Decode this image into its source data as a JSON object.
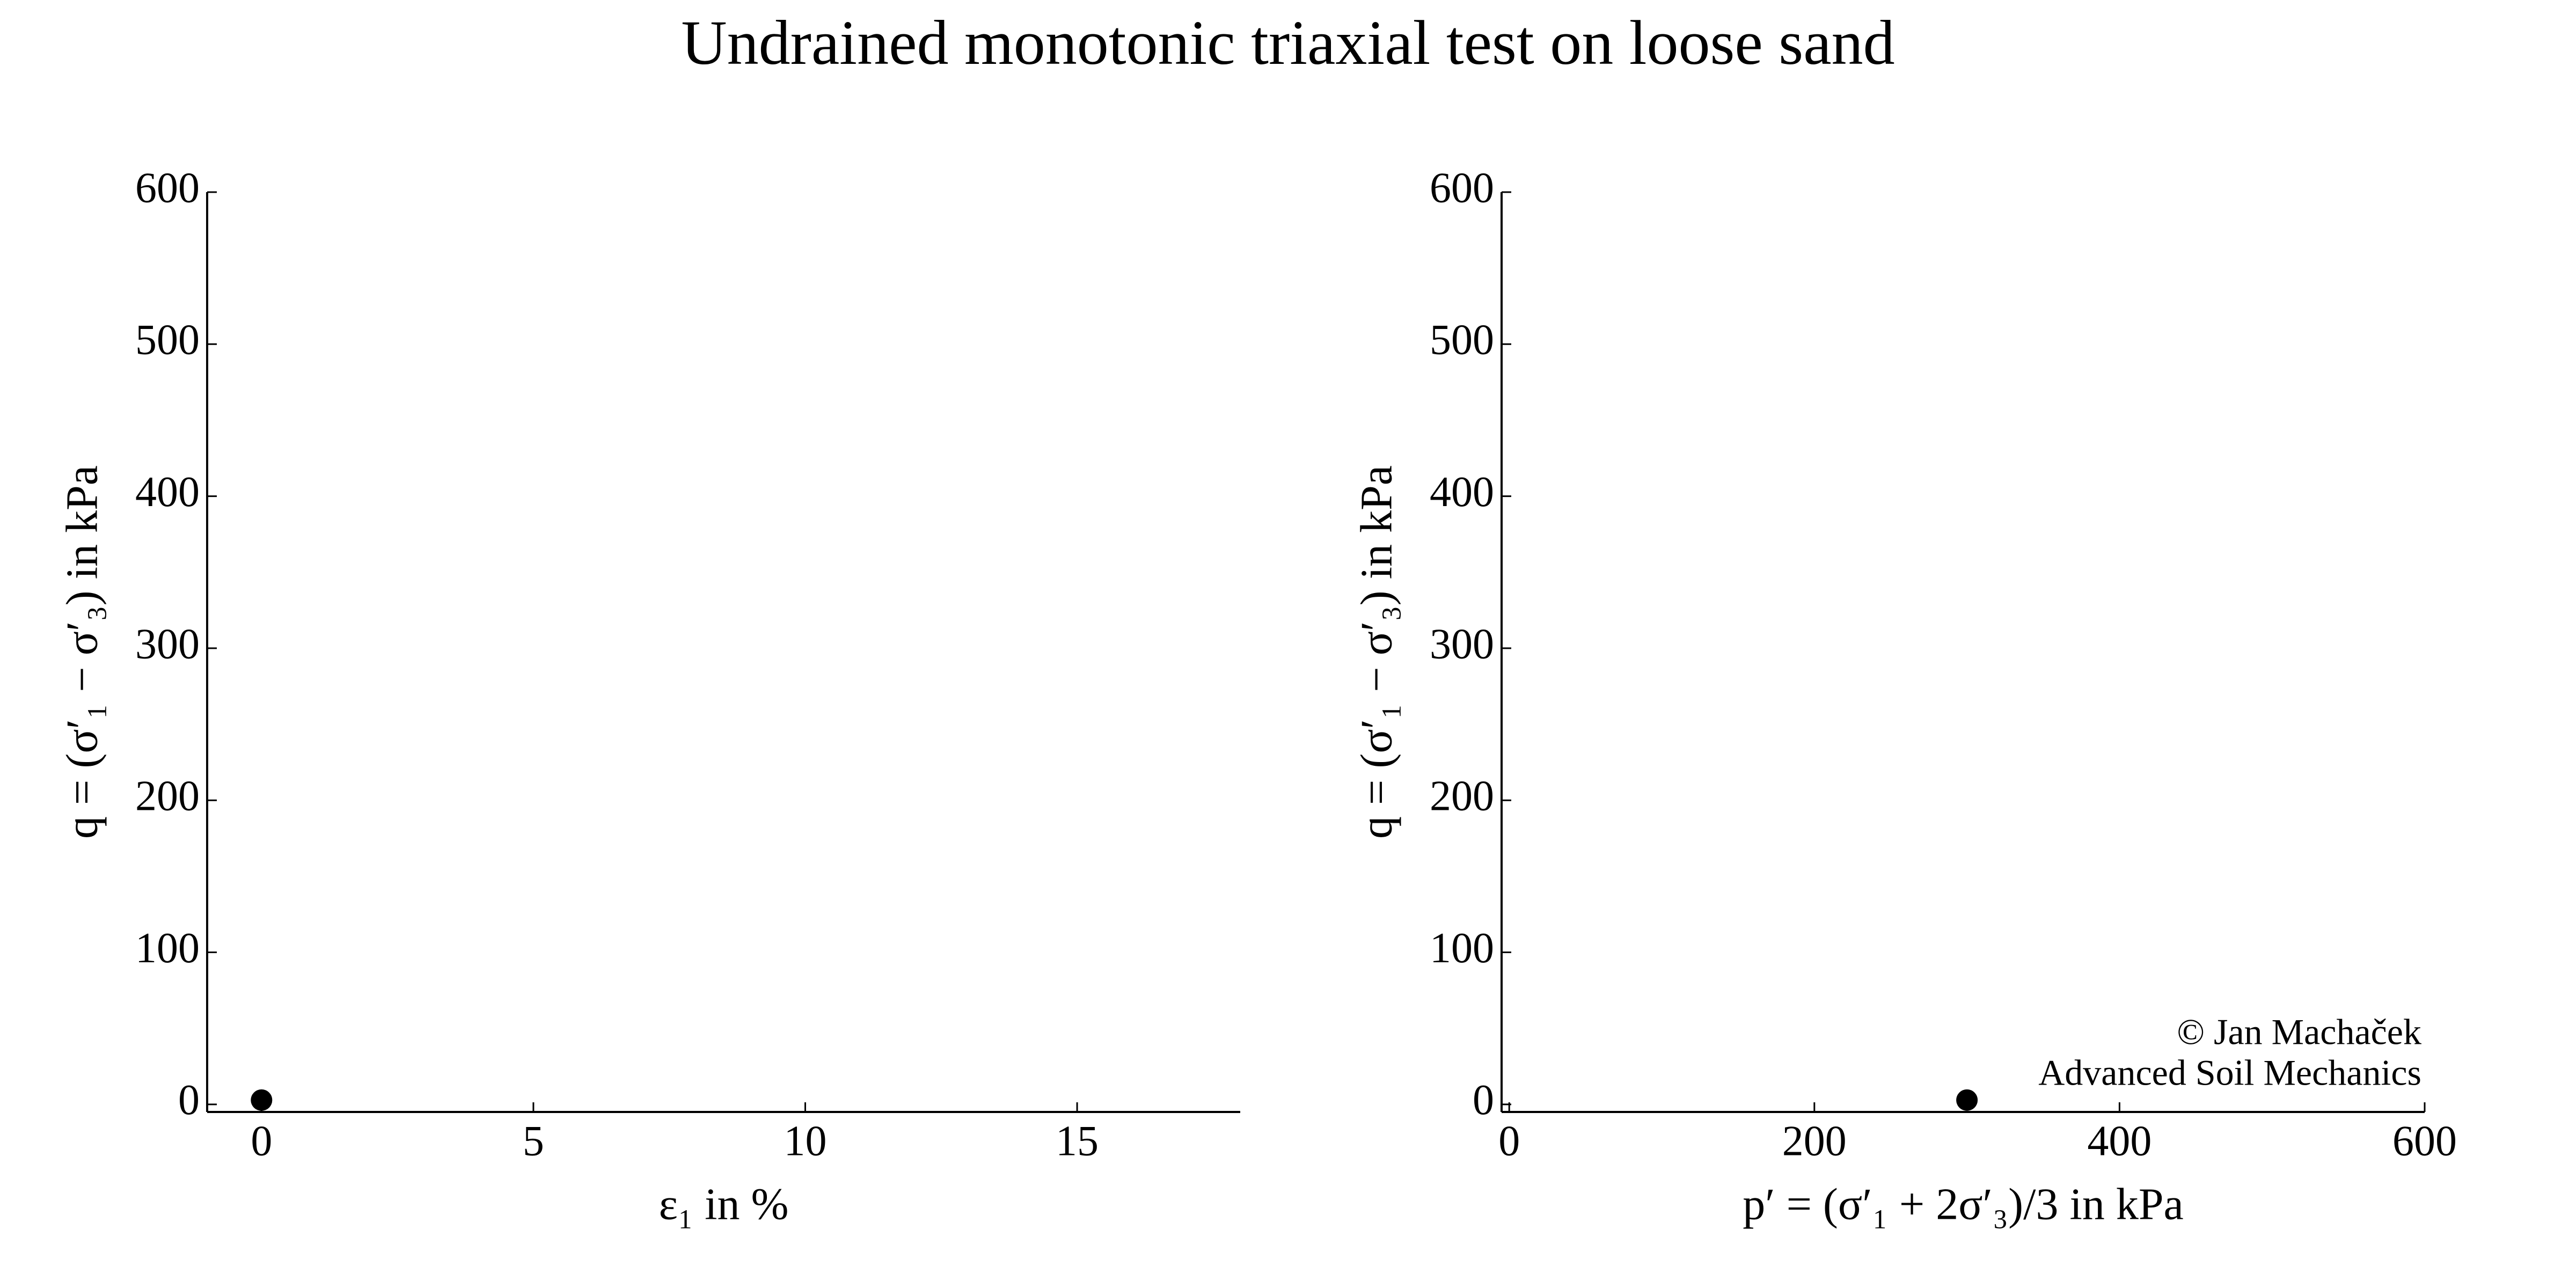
{
  "title": "Undrained monotonic triaxial test on loose sand",
  "chart_data": [
    {
      "type": "scatter",
      "x": [
        0
      ],
      "values": [
        0
      ],
      "color": "#000000",
      "xlabel": "ε₁ in %",
      "ylabel": "q = (σ′₁ − σ′₃) in kPa",
      "xlim": [
        -1,
        18
      ],
      "ylim": [
        -5,
        600
      ],
      "xticks": [
        0,
        5,
        10,
        15
      ],
      "yticks": [
        0,
        100,
        200,
        300,
        400,
        500,
        600
      ],
      "grid": false
    },
    {
      "type": "scatter",
      "x": [
        300
      ],
      "values": [
        0
      ],
      "color": "#000000",
      "xlabel": "p′ = (σ′₁ + 2σ′₃)/3 in kPa",
      "ylabel": "q = (σ′₁ − σ′₃) in kPa",
      "xlim": [
        -5,
        600
      ],
      "ylim": [
        -5,
        600
      ],
      "xticks": [
        0,
        200,
        400,
        600
      ],
      "yticks": [
        0,
        100,
        200,
        300,
        400,
        500,
        600
      ],
      "grid": false,
      "annotations": [
        "© Jan Machaček",
        "Advanced Soil Mechanics"
      ]
    }
  ]
}
